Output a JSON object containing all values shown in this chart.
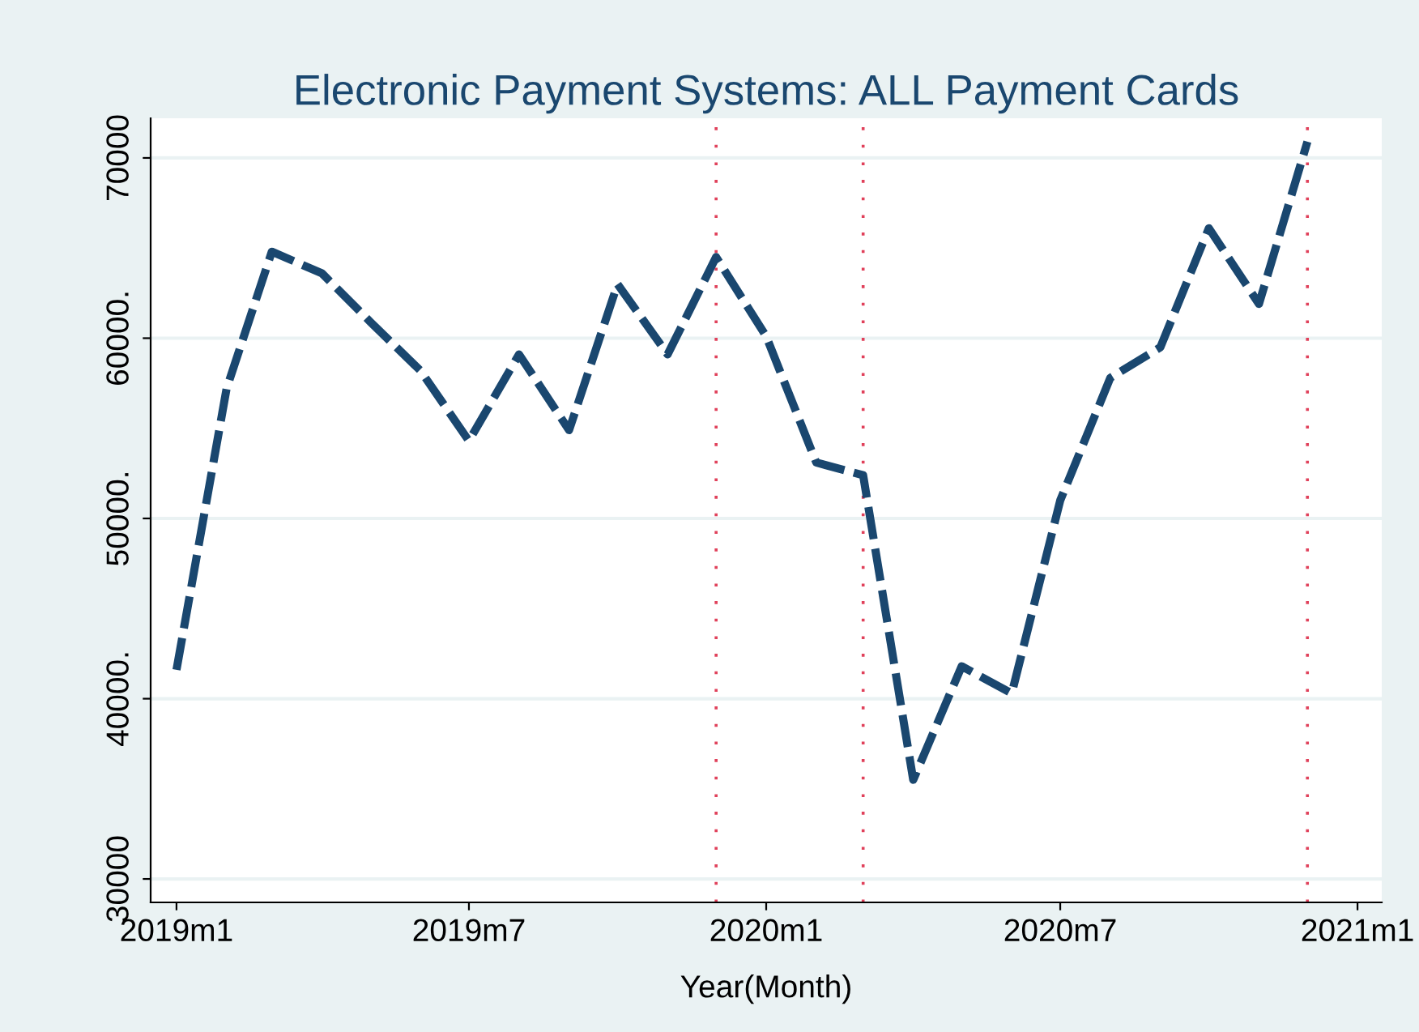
{
  "chart_data": {
    "type": "line",
    "title": "Electronic Payment Systems: ALL Payment Cards",
    "xlabel": "Year(Month)",
    "x": [
      "2019-01",
      "2019-02",
      "2019-03",
      "2019-04",
      "2019-05",
      "2019-06",
      "2019-07",
      "2019-08",
      "2019-09",
      "2019-10",
      "2019-11",
      "2019-12",
      "2020-01",
      "2020-02",
      "2020-03",
      "2020-04",
      "2020-05",
      "2020-06",
      "2020-07",
      "2020-08",
      "2020-09",
      "2020-10",
      "2020-11",
      "2020-12"
    ],
    "series": [
      {
        "color": "#1a476f",
        "values": [
          41600,
          57200,
          64800,
          63600,
          60900,
          58200,
          54300,
          59100,
          54900,
          63000,
          59100,
          64500,
          60100,
          53100,
          52400,
          35500,
          41800,
          40300,
          51000,
          57800,
          59500,
          66100,
          61900,
          70900
        ]
      }
    ],
    "xlim": [
      "2018-12-16",
      "2021-01-16"
    ],
    "ylim": [
      28700,
      72200
    ],
    "xticks": [
      {
        "value": "2019-01",
        "label": "2019m1"
      },
      {
        "value": "2019-07",
        "label": "2019m7"
      },
      {
        "value": "2020-01",
        "label": "2020m1"
      },
      {
        "value": "2020-07",
        "label": "2020m7"
      },
      {
        "value": "2021-01",
        "label": "2021m1"
      }
    ],
    "yticks": [
      30000,
      {
        "value": 40000,
        "label": "40000."
      },
      {
        "value": 50000,
        "label": "50000."
      },
      {
        "value": 60000,
        "label": "60000."
      },
      70000
    ],
    "ref_lines": [
      {
        "axis": "x",
        "value": "2019-12",
        "color": "#e0405a",
        "line_style": "dotted"
      },
      {
        "axis": "x",
        "value": "2020-03",
        "color": "#e0405a",
        "line_style": "dotted"
      },
      {
        "axis": "x",
        "value": "2020-12",
        "color": "#e0405a",
        "line_style": "dotted"
      }
    ],
    "grid": "y",
    "marker": "none",
    "line_style": "dashed"
  }
}
